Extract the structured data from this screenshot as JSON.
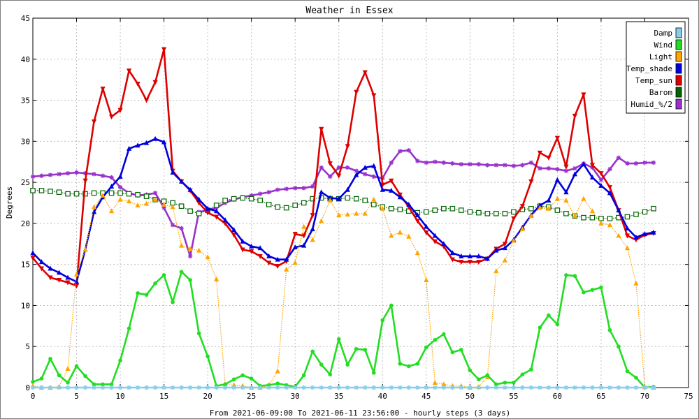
{
  "chart_data": {
    "type": "line",
    "title": "Weather in Essex",
    "xlabel": "From 2021-06-09:00 To 2021-06-11 23:56:00 - hourly steps (3 days)",
    "ylabel": "Degrees",
    "xlim": [
      0,
      75
    ],
    "ylim": [
      0,
      45
    ],
    "x_ticks": [
      0,
      5,
      10,
      15,
      20,
      25,
      30,
      35,
      40,
      45,
      50,
      55,
      60,
      65,
      70,
      75
    ],
    "y_ticks": [
      0,
      5,
      10,
      15,
      20,
      25,
      30,
      35,
      40,
      45
    ],
    "grid": true,
    "legend_position": "top-right",
    "x": [
      0,
      1,
      2,
      3,
      4,
      5,
      6,
      7,
      8,
      9,
      10,
      11,
      12,
      13,
      14,
      15,
      16,
      17,
      18,
      19,
      20,
      21,
      22,
      23,
      24,
      25,
      26,
      27,
      28,
      29,
      30,
      31,
      32,
      33,
      34,
      35,
      36,
      37,
      38,
      39,
      40,
      41,
      42,
      43,
      44,
      45,
      46,
      47,
      48,
      49,
      50,
      51,
      52,
      53,
      54,
      55,
      56,
      57,
      58,
      59,
      60,
      61,
      62,
      63,
      64,
      65,
      66,
      67,
      68,
      69,
      70,
      71
    ],
    "series": [
      {
        "name": "Damp",
        "color": "#87ceeb",
        "style": "solid",
        "marker": "star",
        "values": [
          0,
          0,
          0,
          0,
          0,
          0,
          0,
          0,
          0,
          0,
          0,
          0,
          0,
          0,
          0,
          0,
          0,
          0,
          0,
          0,
          0,
          0,
          0,
          0,
          0,
          0,
          0,
          0,
          0,
          0,
          0,
          0,
          0,
          0,
          0,
          0,
          0,
          0,
          0,
          0,
          0,
          0,
          0,
          0,
          0,
          0,
          0,
          0,
          0,
          0,
          0,
          0,
          0,
          0,
          0,
          0,
          0,
          0,
          0,
          0,
          0,
          0,
          0,
          0,
          0,
          0,
          0,
          0,
          0,
          0,
          0,
          0
        ]
      },
      {
        "name": "Wind",
        "color": "#22dd22",
        "style": "solid",
        "marker": "circle",
        "values": [
          0.7,
          1.1,
          3.5,
          1.5,
          0.6,
          2.6,
          1.4,
          0.4,
          0.4,
          0.4,
          3.3,
          7.2,
          11.5,
          11.3,
          12.7,
          13.7,
          10.4,
          14.1,
          13.1,
          6.6,
          3.8,
          0.2,
          0.4,
          1.0,
          1.5,
          1.1,
          0.2,
          0.3,
          0.5,
          0.3,
          0.1,
          1.5,
          4.4,
          2.8,
          1.6,
          5.9,
          2.8,
          4.7,
          4.6,
          1.8,
          8.2,
          10.0,
          2.9,
          2.6,
          2.9,
          4.9,
          5.8,
          6.5,
          4.3,
          4.6,
          2.1,
          1.0,
          1.5,
          0.4,
          0.6,
          0.6,
          1.6,
          2.2,
          7.3,
          8.8,
          7.7,
          13.7,
          13.6,
          11.6,
          11.9,
          12.2,
          7.0,
          5.0,
          2.0,
          1.2,
          0.0,
          0.1
        ]
      },
      {
        "name": "Light",
        "color": "#ffa500",
        "style": "dotted",
        "marker": "triangle",
        "values": [
          0.2,
          0.0,
          0.0,
          0.1,
          2.3,
          13.8,
          16.8,
          22.0,
          23.4,
          21.5,
          22.9,
          22.7,
          22.2,
          22.4,
          22.9,
          22.3,
          22.0,
          17.3,
          16.9,
          16.7,
          15.9,
          13.2,
          0.4,
          0.3,
          0.2,
          0.0,
          0.0,
          0.3,
          2.0,
          14.4,
          15.2,
          19.6,
          18.0,
          20.3,
          22.8,
          21.0,
          21.1,
          21.2,
          21.2,
          22.9,
          21.8,
          18.5,
          18.9,
          18.4,
          16.4,
          13.1,
          0.6,
          0.4,
          0.2,
          0.2,
          0.0,
          0.1,
          1.3,
          14.2,
          15.5,
          17.9,
          19.3,
          20.9,
          21.9,
          21.8,
          23.0,
          22.8,
          20.9,
          23.0,
          21.5,
          20.0,
          19.8,
          18.5,
          17.0,
          12.7,
          0.1,
          0.0
        ]
      },
      {
        "name": "Temp_shade",
        "color": "#0000dd",
        "style": "solid",
        "marker": "triangle",
        "values": [
          16.4,
          15.3,
          14.5,
          14.0,
          13.4,
          12.9,
          16.8,
          21.4,
          23.2,
          24.5,
          25.7,
          29.1,
          29.5,
          29.8,
          30.3,
          29.9,
          26.2,
          25.1,
          24.1,
          22.9,
          21.8,
          21.5,
          20.4,
          19.2,
          17.8,
          17.2,
          17.0,
          16.0,
          15.6,
          15.6,
          17.1,
          17.3,
          19.3,
          23.8,
          23.1,
          23.0,
          24.1,
          25.9,
          26.8,
          27.0,
          24.1,
          24.0,
          23.2,
          22.3,
          21.0,
          19.6,
          18.5,
          17.5,
          16.4,
          16.0,
          16.0,
          16.0,
          15.7,
          16.7,
          17.0,
          18.0,
          19.5,
          21.0,
          22.2,
          22.8,
          25.3,
          23.8,
          26.0,
          27.2,
          25.6,
          24.6,
          23.7,
          21.6,
          19.4,
          18.3,
          18.7,
          18.9
        ]
      },
      {
        "name": "Temp_sun",
        "color": "#dd0000",
        "style": "solid",
        "marker": "tri-down",
        "values": [
          15.8,
          14.5,
          13.4,
          13.1,
          12.8,
          12.4,
          25.2,
          32.4,
          36.4,
          33.0,
          33.8,
          38.6,
          37.0,
          35.0,
          37.2,
          41.2,
          26.4,
          25.1,
          24.0,
          22.5,
          21.3,
          20.8,
          20.0,
          18.6,
          16.8,
          16.6,
          16.0,
          15.2,
          14.8,
          15.4,
          18.7,
          18.5,
          21.0,
          31.5,
          27.3,
          25.8,
          29.4,
          36.0,
          38.4,
          35.6,
          24.7,
          25.2,
          23.5,
          22.0,
          20.3,
          18.9,
          17.8,
          17.2,
          15.6,
          15.3,
          15.3,
          15.3,
          15.7,
          16.9,
          17.5,
          20.6,
          22.1,
          25.1,
          28.6,
          28.0,
          30.4,
          26.9,
          33.1,
          35.7,
          27.1,
          26.1,
          24.4,
          21.6,
          18.5,
          18.0,
          18.6,
          18.8
        ]
      },
      {
        "name": "Barom",
        "color": "#006400",
        "style": "dotted",
        "marker": "square",
        "values": [
          24.0,
          24.0,
          23.9,
          23.8,
          23.6,
          23.6,
          23.6,
          23.7,
          23.7,
          23.7,
          23.7,
          23.6,
          23.5,
          23.3,
          22.9,
          22.7,
          22.5,
          22.1,
          21.5,
          21.2,
          21.6,
          22.2,
          22.8,
          23.0,
          23.1,
          23.0,
          22.8,
          22.3,
          22.0,
          21.9,
          22.2,
          22.5,
          23.0,
          23.1,
          23.0,
          23.0,
          23.1,
          23.0,
          22.8,
          22.3,
          22.0,
          21.8,
          21.7,
          21.5,
          21.3,
          21.4,
          21.6,
          21.8,
          21.8,
          21.6,
          21.4,
          21.3,
          21.2,
          21.2,
          21.2,
          21.4,
          21.7,
          21.8,
          22.1,
          22.0,
          21.6,
          21.2,
          20.9,
          20.7,
          20.7,
          20.6,
          20.6,
          20.7,
          20.8,
          21.1,
          21.4,
          21.8
        ]
      },
      {
        "name": "Humid_%/2",
        "color": "#9932cc",
        "style": "solid",
        "marker": "star",
        "values": [
          25.7,
          25.8,
          25.9,
          26.0,
          26.1,
          26.2,
          26.1,
          26.0,
          25.8,
          25.6,
          24.4,
          23.7,
          23.4,
          23.5,
          23.7,
          21.9,
          19.8,
          19.4,
          16.0,
          21.4,
          21.6,
          21.9,
          22.5,
          22.9,
          23.2,
          23.4,
          23.6,
          23.8,
          24.1,
          24.2,
          24.3,
          24.3,
          24.5,
          26.8,
          25.7,
          26.8,
          26.8,
          26.4,
          26.0,
          25.7,
          25.5,
          27.4,
          28.8,
          28.9,
          27.6,
          27.4,
          27.5,
          27.4,
          27.3,
          27.2,
          27.2,
          27.2,
          27.1,
          27.1,
          27.1,
          27.0,
          27.1,
          27.4,
          26.7,
          26.7,
          26.6,
          26.4,
          26.7,
          27.3,
          26.8,
          25.3,
          26.6,
          28.0,
          27.3,
          27.3,
          27.4,
          27.4
        ]
      }
    ]
  }
}
